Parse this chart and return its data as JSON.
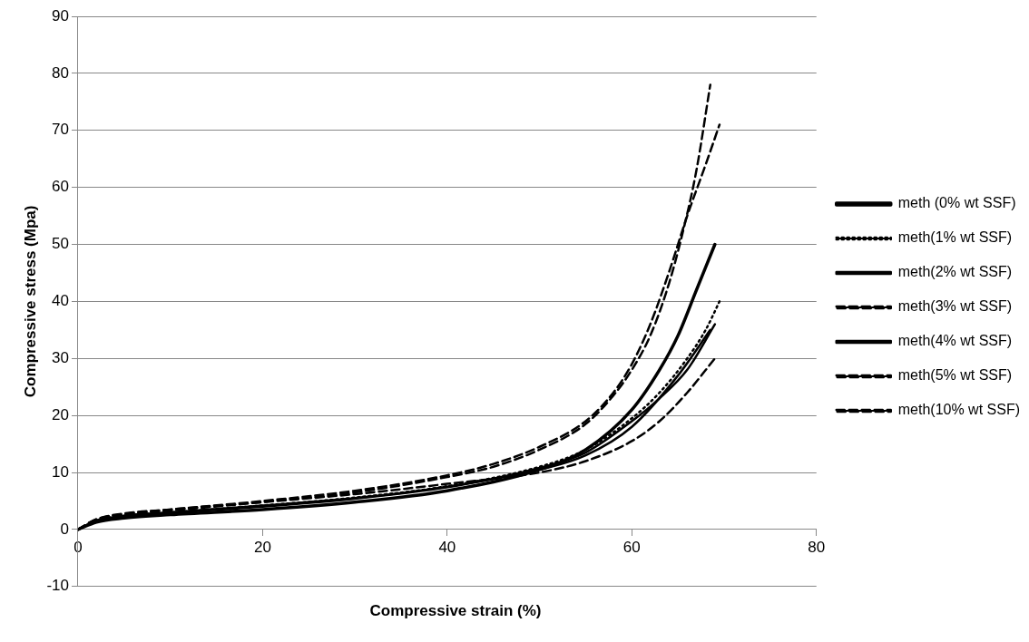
{
  "chart_data": {
    "type": "line",
    "xlabel": "Compressive strain (%)",
    "ylabel": "Compressive stress (Mpa)",
    "xlim": [
      0,
      80
    ],
    "xticks": [
      0,
      20,
      40,
      60,
      80
    ],
    "ylim": [
      -10,
      90
    ],
    "yticks": [
      -10,
      0,
      10,
      20,
      30,
      40,
      50,
      60,
      70,
      80,
      90
    ],
    "grid": "y",
    "legend": "right",
    "marker": "none",
    "series": [
      {
        "name": "meth (0% wt SSF)",
        "color": "#000000",
        "line_style": "solid",
        "x": [
          0,
          2,
          5,
          10,
          20,
          30,
          40,
          50,
          55,
          60,
          63,
          65,
          67,
          69
        ],
        "values": [
          0,
          1.3,
          2,
          2.6,
          3.5,
          4.8,
          6.8,
          10.5,
          14,
          21,
          28,
          34,
          42,
          50
        ]
      },
      {
        "name": "meth(1% wt SSF)",
        "color": "#000000",
        "line_style": "dotted",
        "x": [
          0,
          2,
          5,
          10,
          20,
          30,
          40,
          50,
          55,
          60,
          63,
          66,
          68,
          69.5
        ],
        "values": [
          0,
          1.6,
          2.4,
          3,
          4.2,
          5.6,
          7.6,
          11,
          14,
          19.5,
          24,
          30,
          35,
          40
        ]
      },
      {
        "name": "meth(2% wt SSF)",
        "color": "#000000",
        "line_style": "solid",
        "x": [
          0,
          2,
          5,
          10,
          20,
          30,
          40,
          50,
          55,
          60,
          63,
          66,
          69
        ],
        "values": [
          0,
          1.5,
          2.3,
          2.9,
          4,
          5.4,
          7.4,
          10.8,
          13.5,
          19,
          23,
          28,
          36
        ]
      },
      {
        "name": "meth(3% wt SSF)",
        "color": "#000000",
        "line_style": "dashed",
        "x": [
          0,
          2,
          5,
          10,
          20,
          30,
          40,
          50,
          55,
          60,
          63,
          66,
          69
        ],
        "values": [
          0,
          1.7,
          2.7,
          3.5,
          4.8,
          6.2,
          8,
          10,
          12,
          15.5,
          19,
          24,
          30
        ]
      },
      {
        "name": "meth(4% wt SSF)",
        "color": "#000000",
        "line_style": "solid",
        "x": [
          0,
          2,
          5,
          10,
          20,
          30,
          40,
          50,
          55,
          60,
          65,
          68.5
        ],
        "values": [
          0,
          1.5,
          2.4,
          3,
          4.2,
          5.5,
          7.5,
          10.5,
          13,
          18,
          27,
          35
        ]
      },
      {
        "name": "meth(5% wt SSF)",
        "color": "#000000",
        "line_style": "dashed",
        "x": [
          0,
          2,
          5,
          10,
          20,
          30,
          40,
          45,
          50,
          55,
          58,
          60,
          62,
          64,
          66,
          68,
          69.5
        ],
        "values": [
          0,
          1.8,
          2.8,
          3.5,
          5,
          6.8,
          9.5,
          11.5,
          14.5,
          19,
          24,
          29,
          36,
          45,
          55,
          64,
          71
        ]
      },
      {
        "name": "meth(10% wt SSF)",
        "color": "#000000",
        "line_style": "dashed",
        "x": [
          0,
          2,
          5,
          10,
          20,
          30,
          40,
          45,
          50,
          55,
          58,
          60,
          62,
          64,
          65.5,
          67,
          68.5
        ],
        "values": [
          0,
          1.8,
          2.6,
          3.3,
          4.8,
          6.5,
          9.2,
          11,
          14,
          18.5,
          23.5,
          28,
          34,
          43,
          52,
          63,
          78
        ]
      }
    ]
  }
}
